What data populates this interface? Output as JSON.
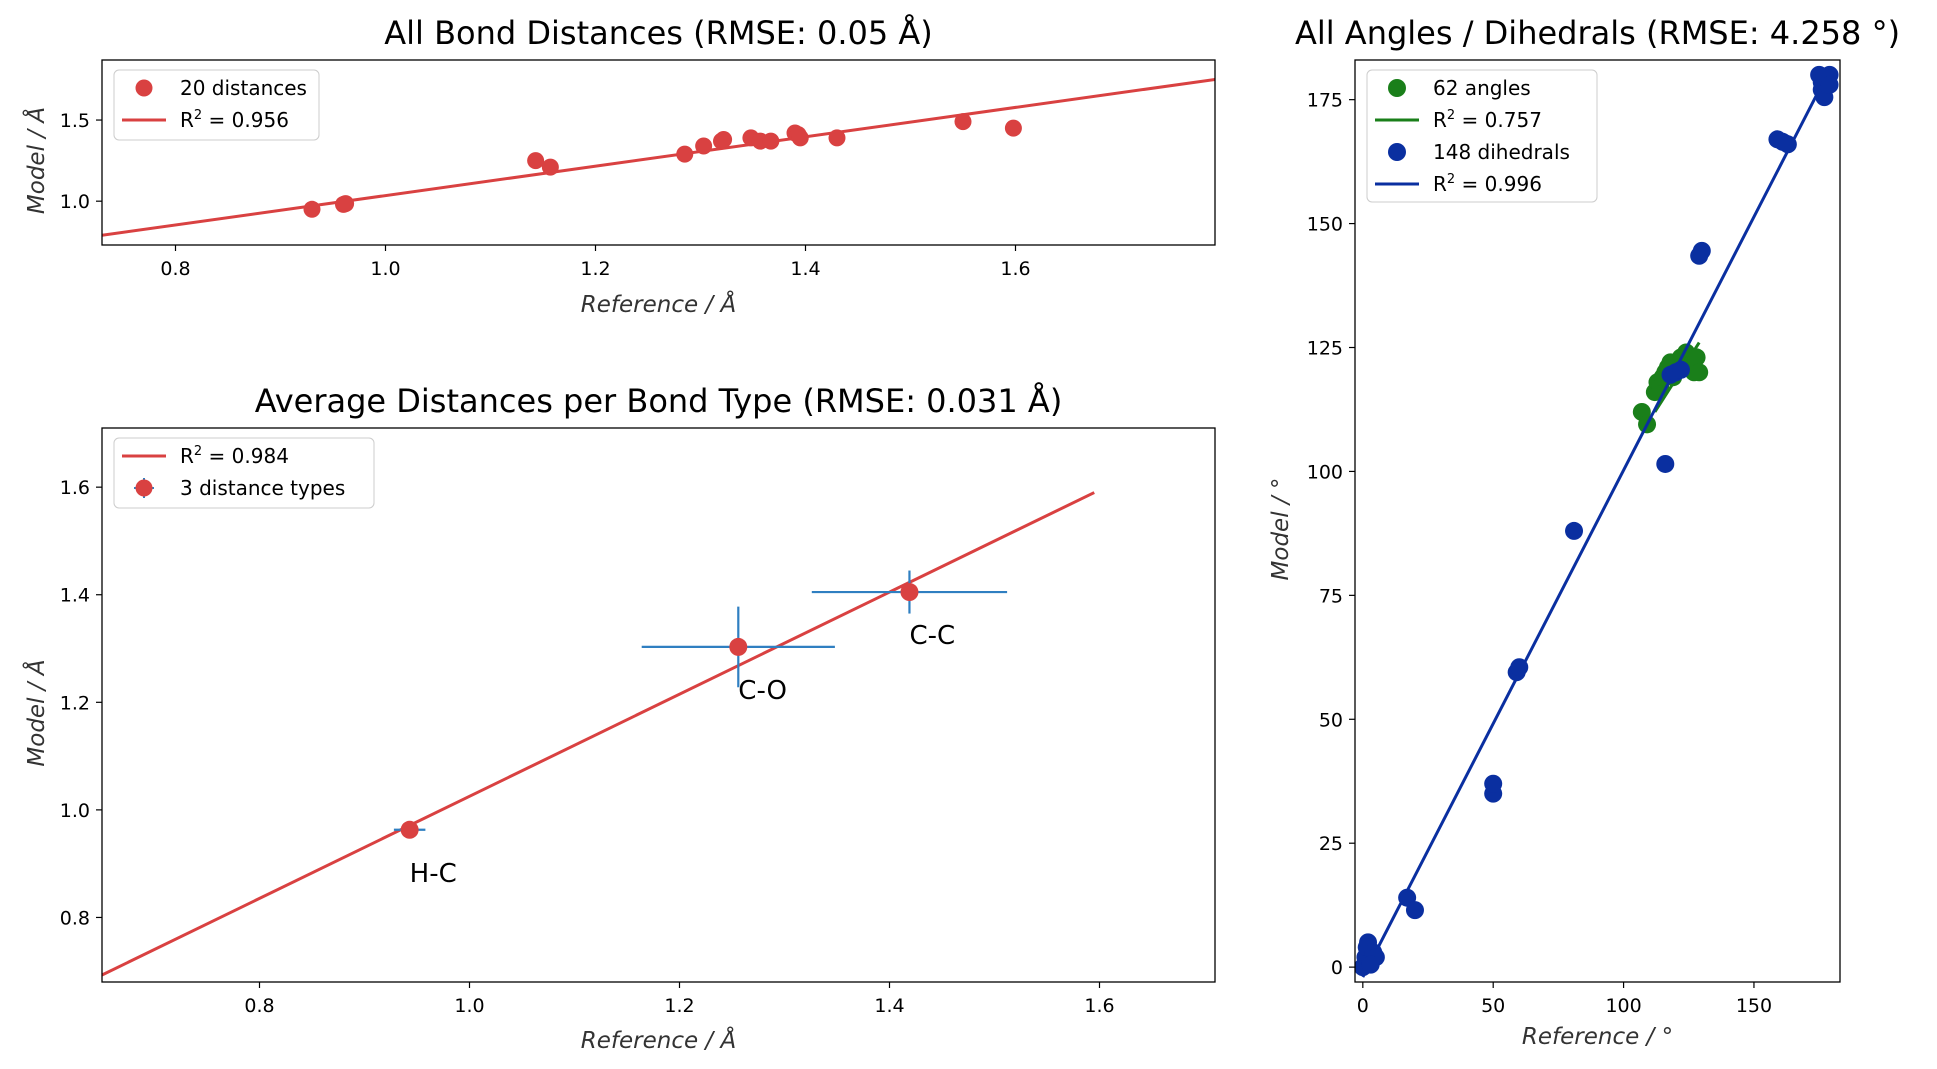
{
  "chart_data": [
    {
      "type": "scatter",
      "title": "All Bond Distances (RMSE: 0.05 Å)",
      "xlabel": "Reference / Å",
      "ylabel": "Model / Å",
      "xlim": [
        0.73,
        1.79
      ],
      "ylim": [
        0.73,
        1.87
      ],
      "xticks": [
        "0.8",
        "1.0",
        "1.2",
        "1.4",
        "1.6"
      ],
      "yticks": [
        "1.0",
        "1.5"
      ],
      "legend_position": "upper-left",
      "colors": {
        "points": "#d94141",
        "fit": "#d94141"
      },
      "series": [
        {
          "name": "20 distances",
          "points": [
            [
              0.93,
              0.95
            ],
            [
              0.96,
              0.98
            ],
            [
              0.962,
              0.985
            ],
            [
              1.143,
              1.25
            ],
            [
              1.157,
              1.21
            ],
            [
              1.285,
              1.29
            ],
            [
              1.303,
              1.34
            ],
            [
              1.32,
              1.37
            ],
            [
              1.322,
              1.38
            ],
            [
              1.348,
              1.39
            ],
            [
              1.357,
              1.37
            ],
            [
              1.367,
              1.37
            ],
            [
              1.39,
              1.42
            ],
            [
              1.393,
              1.41
            ],
            [
              1.395,
              1.39
            ],
            [
              1.43,
              1.39
            ],
            [
              1.55,
              1.49
            ],
            [
              1.598,
              1.45
            ]
          ]
        }
      ],
      "fit": {
        "label": "R² = 0.956",
        "x": [
          0.73,
          1.79
        ],
        "y": [
          0.79,
          1.75
        ]
      }
    },
    {
      "type": "scatter",
      "title": "Average Distances per Bond Type (RMSE: 0.031 Å)",
      "xlabel": "Reference / Å",
      "ylabel": "Model / Å",
      "xlim": [
        0.65,
        1.71
      ],
      "ylim": [
        0.68,
        1.71
      ],
      "xticks": [
        "0.8",
        "1.0",
        "1.2",
        "1.4",
        "1.6"
      ],
      "yticks": [
        "0.8",
        "1.0",
        "1.2",
        "1.4",
        "1.6"
      ],
      "legend_position": "upper-left",
      "colors": {
        "points": "#d94141",
        "fit": "#d94141",
        "errorbars": "#2f7fc1"
      },
      "fit": {
        "label": "R² = 0.984",
        "x": [
          0.65,
          1.595
        ],
        "y": [
          0.693,
          1.59
        ]
      },
      "series": [
        {
          "name": "3 distance types",
          "points": [
            {
              "x": 0.943,
              "y": 0.963,
              "xerr": 0.015,
              "yerr": 0.004,
              "label": "H-C"
            },
            {
              "x": 1.256,
              "y": 1.303,
              "xerr": 0.092,
              "yerr": 0.075,
              "label": "C-O"
            },
            {
              "x": 1.419,
              "y": 1.405,
              "xerr": 0.093,
              "yerr": 0.04,
              "label": "C-C"
            }
          ]
        }
      ]
    },
    {
      "type": "scatter",
      "title": "All Angles / Dihedrals (RMSE: 4.258 °)",
      "xlabel": "Reference / °",
      "ylabel": "Model / °",
      "xlim": [
        -3,
        183
      ],
      "ylim": [
        -3,
        183
      ],
      "xticks": [
        "0",
        "50",
        "100",
        "150"
      ],
      "yticks": [
        "0",
        "25",
        "50",
        "75",
        "100",
        "125",
        "150",
        "175"
      ],
      "legend_position": "upper-left",
      "colors": {
        "angles": "#1a7f1a",
        "dihedrals": "#0a2fa0"
      },
      "series": [
        {
          "name": "62 angles",
          "points": [
            [
              107,
              112
            ],
            [
              109,
              109.5
            ],
            [
              112,
              116
            ],
            [
              113,
              118
            ],
            [
              114,
              117
            ],
            [
              115,
              119
            ],
            [
              116,
              120
            ],
            [
              117,
              121
            ],
            [
              118,
              122
            ],
            [
              119,
              119
            ],
            [
              120,
              122
            ],
            [
              121,
              121
            ],
            [
              122,
              123
            ],
            [
              123,
              122
            ],
            [
              124,
              124
            ],
            [
              125,
              123
            ],
            [
              126,
              121
            ],
            [
              127,
              120
            ],
            [
              128,
              123
            ],
            [
              129,
              120
            ]
          ],
          "fit": {
            "label": "R² = 0.757",
            "x": [
              112,
              129
            ],
            "y": [
              112,
              126
            ]
          }
        },
        {
          "name": "148 dihedrals",
          "points": [
            [
              0,
              0
            ],
            [
              1,
              2
            ],
            [
              2,
              5
            ],
            [
              1.5,
              4
            ],
            [
              3,
              1
            ],
            [
              4,
              3
            ],
            [
              5,
              2
            ],
            [
              3,
              0.5
            ],
            [
              17,
              14
            ],
            [
              20,
              11.5
            ],
            [
              50,
              35
            ],
            [
              50,
              37
            ],
            [
              59,
              59.5
            ],
            [
              60,
              60.5
            ],
            [
              81,
              88
            ],
            [
              116,
              101.5
            ],
            [
              118,
              119.5
            ],
            [
              120,
              120
            ],
            [
              122,
              120.5
            ],
            [
              129,
              143.5
            ],
            [
              130,
              144.5
            ],
            [
              159,
              167
            ],
            [
              161,
              166.5
            ],
            [
              163,
              166
            ],
            [
              175,
              180
            ],
            [
              176,
              177
            ],
            [
              177,
              175.5
            ],
            [
              178,
              179
            ],
            [
              179,
              180
            ],
            [
              176,
              178.5
            ],
            [
              177,
              179.5
            ],
            [
              179,
              178
            ]
          ],
          "fit": {
            "label": "R² = 0.996",
            "x": [
              0,
              178
            ],
            "y": [
              -2,
              180
            ]
          }
        }
      ]
    }
  ]
}
